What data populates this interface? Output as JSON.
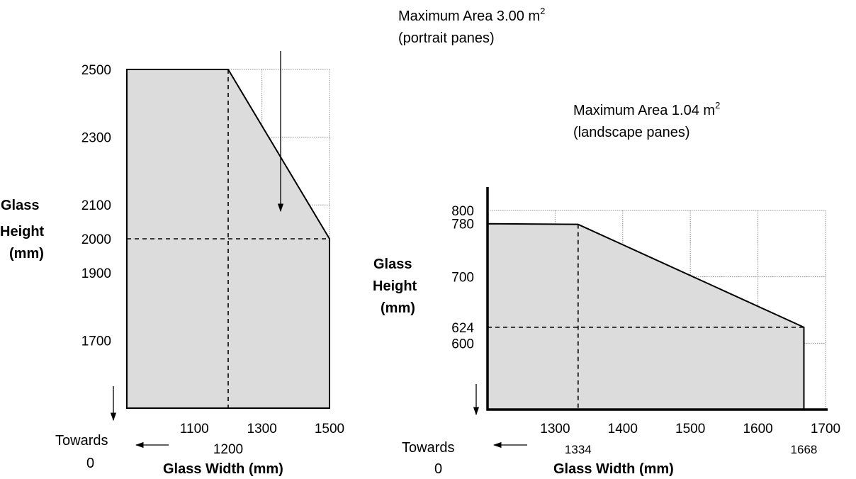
{
  "chart_data": [
    {
      "type": "area",
      "annotation": {
        "line1": "Maximum Area 3.00 m",
        "superscript": "2",
        "line2": "(portrait panes)"
      },
      "ylabel": [
        "Glass",
        "Height",
        "(mm)"
      ],
      "xlabel": "Glass Width (mm)",
      "towards_label": [
        "Towards",
        "0"
      ],
      "x_ticks": [
        1100,
        1300,
        1500
      ],
      "x_ref_tick": 1200,
      "y_ticks": [
        2500,
        2300,
        2100,
        2000,
        1900,
        1700
      ],
      "xlim": [
        900,
        1500
      ],
      "ylim": [
        1500,
        2500
      ],
      "x_grid": [
        1100,
        1300,
        1500
      ],
      "y_grid": [
        2500,
        2300,
        2100,
        1900,
        1700
      ],
      "outline": {
        "x": [
          1200,
          1500,
          1500
        ],
        "y": [
          2500,
          2000,
          1500
        ]
      },
      "reference_point": {
        "x": 1200,
        "y": 2000
      }
    },
    {
      "type": "area",
      "annotation": {
        "line1": "Maximum Area 1.04 m",
        "superscript": "2",
        "line2": "(landscape panes)"
      },
      "ylabel": [
        "Glass",
        "Height",
        "(mm)"
      ],
      "xlabel": "Glass Width (mm)",
      "towards_label": [
        "Towards",
        "0"
      ],
      "x_ticks": [
        1300,
        1400,
        1500,
        1600,
        1700
      ],
      "x_ref_ticks": [
        1334,
        1668
      ],
      "y_ticks": [
        800,
        780,
        700,
        624,
        600
      ],
      "xlim": [
        1200,
        1700
      ],
      "ylim": [
        500,
        800
      ],
      "x_grid": [
        1300,
        1400,
        1500,
        1600,
        1700
      ],
      "y_grid": [
        800,
        700,
        600
      ],
      "outline": {
        "x": [
          1200,
          1334,
          1668,
          1668
        ],
        "y": [
          780,
          779,
          624,
          500
        ]
      },
      "reference_point": {
        "x": 1334,
        "y": 624
      }
    }
  ]
}
